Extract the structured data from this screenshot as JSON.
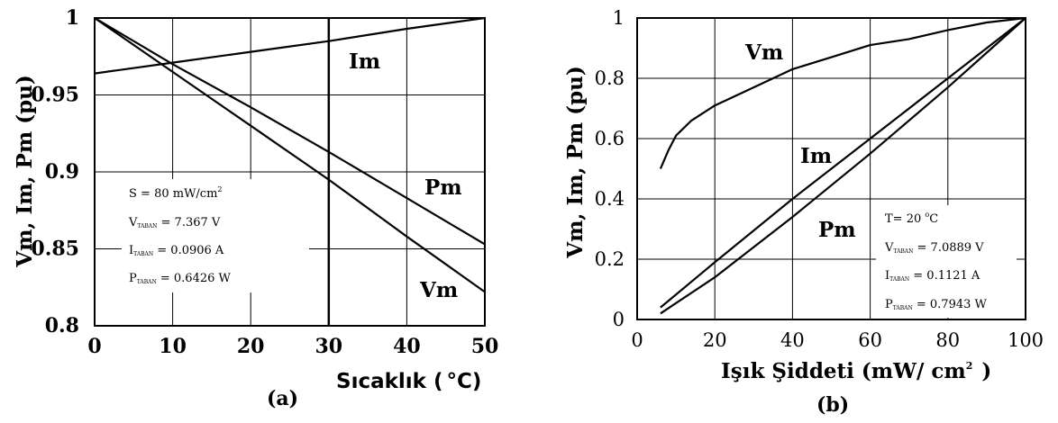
{
  "chart_data": [
    {
      "type": "line",
      "panel_label": "(a)",
      "xlabel": "Sıcaklık (",
      "xlabel_unit": "°C)",
      "ylabel": "Vm, Im, Pm (pu)",
      "xlim": [
        0,
        50
      ],
      "ylim": [
        0.8,
        1.0
      ],
      "x_ticks": [
        "0",
        "10",
        "20",
        "30",
        "40",
        "50"
      ],
      "y_ticks": [
        "0.8",
        "0.85",
        "0.9",
        "0.95",
        "1"
      ],
      "grid": true,
      "series": [
        {
          "name": "Im",
          "x": [
            0,
            10,
            20,
            30,
            40,
            50
          ],
          "y": [
            0.964,
            0.971,
            0.978,
            0.985,
            0.993,
            1.0
          ]
        },
        {
          "name": "Pm",
          "x": [
            0,
            10,
            20,
            30,
            40,
            50
          ],
          "y": [
            1.0,
            0.97,
            0.942,
            0.913,
            0.883,
            0.853
          ]
        },
        {
          "name": "Vm",
          "x": [
            0,
            10,
            20,
            30,
            40,
            50
          ],
          "y": [
            1.0,
            0.965,
            0.93,
            0.895,
            0.858,
            0.822
          ]
        }
      ],
      "annotations": [
        {
          "main": "S = 80  mW/cm",
          "sup": "2"
        },
        {
          "main": "V",
          "sub": "TABAN",
          "rest": " = 7.367  V"
        },
        {
          "main": "I",
          "sub": "TABAN",
          "rest": " = 0.0906  A"
        },
        {
          "main": "P",
          "sub": "TABAN",
          "rest": " = 0.6426  W"
        }
      ]
    },
    {
      "type": "line",
      "panel_label": "(b)",
      "xlabel": "Işık Şiddeti (mW/ cm",
      "xlabel_sup": "2",
      "xlabel_end": ")",
      "ylabel": "Vm, Im, Pm (pu)",
      "xlim": [
        0,
        100
      ],
      "ylim": [
        0,
        1.0
      ],
      "x_ticks": [
        "0",
        "20",
        "40",
        "60",
        "80",
        "100"
      ],
      "y_ticks": [
        "0",
        "0.2",
        "0.4",
        "0.6",
        "0.8",
        "1"
      ],
      "grid": true,
      "series": [
        {
          "name": "Vm",
          "x": [
            6,
            8,
            10,
            14,
            20,
            30,
            40,
            50,
            60,
            70,
            80,
            90,
            100
          ],
          "y": [
            0.5,
            0.56,
            0.61,
            0.66,
            0.71,
            0.77,
            0.83,
            0.87,
            0.91,
            0.93,
            0.96,
            0.985,
            1.0
          ]
        },
        {
          "name": "Im",
          "x": [
            6,
            20,
            40,
            60,
            80,
            100
          ],
          "y": [
            0.04,
            0.19,
            0.4,
            0.6,
            0.8,
            1.0
          ]
        },
        {
          "name": "Pm",
          "x": [
            6,
            20,
            40,
            60,
            80,
            100
          ],
          "y": [
            0.02,
            0.14,
            0.34,
            0.55,
            0.77,
            1.0
          ]
        }
      ],
      "annotations": [
        {
          "main": "T= 20 ",
          "sup": "o",
          "rest": "C"
        },
        {
          "main": "V",
          "sub": "TABAN",
          "rest": " = 7.0889  V"
        },
        {
          "main": "I",
          "sub": "TABAN",
          "rest": " = 0.1121  A"
        },
        {
          "main": "P",
          "sub": "TABAN",
          "rest": " = 0.7943  W"
        }
      ]
    }
  ]
}
